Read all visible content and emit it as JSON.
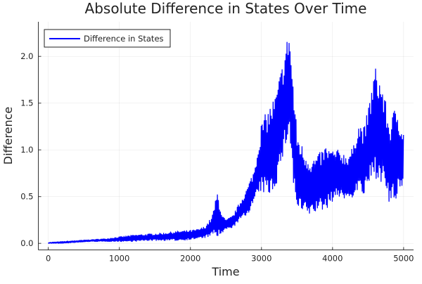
{
  "chart_data": {
    "type": "line",
    "title": "Absolute Difference in States Over Time",
    "xlabel": "Time",
    "ylabel": "Difference",
    "xlim": [
      -140,
      5140
    ],
    "ylim": [
      -0.07,
      2.37
    ],
    "xticks": [
      0,
      1000,
      2000,
      3000,
      4000,
      5000
    ],
    "xtick_labels": [
      "0",
      "1000",
      "2000",
      "3000",
      "4000",
      "5000"
    ],
    "yticks": [
      0,
      0.5,
      1,
      1.5,
      2
    ],
    "ytick_labels": [
      "0.0",
      "0.5",
      "1.0",
      "1.5",
      "2.0"
    ],
    "grid": true,
    "legend": {
      "placement": "top-left",
      "entries": [
        "Difference in States"
      ]
    },
    "series": [
      {
        "name": "Difference in States",
        "color": "#0000ff",
        "note_envelope": "rapidly oscillating signal; lower/upper envelope sampled at x",
        "x": [
          0,
          200,
          400,
          600,
          800,
          1000,
          1200,
          1400,
          1600,
          1800,
          2000,
          2100,
          2200,
          2300,
          2350,
          2380,
          2450,
          2500,
          2600,
          2700,
          2800,
          2900,
          3000,
          3100,
          3200,
          3300,
          3390,
          3450,
          3500,
          3600,
          3700,
          3800,
          3900,
          4000,
          4100,
          4200,
          4300,
          4350,
          4450,
          4500,
          4600,
          4700,
          4800,
          4900,
          5000
        ],
        "lower": [
          0,
          0,
          0.01,
          0.02,
          0.02,
          0.02,
          0.02,
          0.03,
          0.03,
          0.03,
          0.04,
          0.05,
          0.06,
          0.08,
          0.1,
          0.05,
          0.1,
          0.15,
          0.17,
          0.25,
          0.3,
          0.45,
          0.55,
          0.5,
          0.6,
          0.9,
          1.2,
          0.6,
          0.35,
          0.3,
          0.3,
          0.35,
          0.35,
          0.45,
          0.5,
          0.45,
          0.5,
          0.55,
          0.5,
          0.6,
          0.7,
          0.65,
          0.4,
          0.45,
          0.6
        ],
        "upper": [
          0.01,
          0.02,
          0.03,
          0.04,
          0.05,
          0.07,
          0.09,
          0.1,
          0.11,
          0.13,
          0.14,
          0.15,
          0.18,
          0.28,
          0.45,
          0.56,
          0.3,
          0.25,
          0.3,
          0.45,
          0.6,
          0.8,
          1.3,
          1.45,
          1.6,
          1.95,
          2.31,
          1.7,
          1.2,
          1.0,
          0.9,
          0.95,
          1.05,
          1.0,
          1.0,
          0.95,
          1.05,
          1.3,
          1.25,
          1.45,
          1.9,
          1.7,
          1.3,
          1.5,
          1.2
        ]
      }
    ]
  }
}
